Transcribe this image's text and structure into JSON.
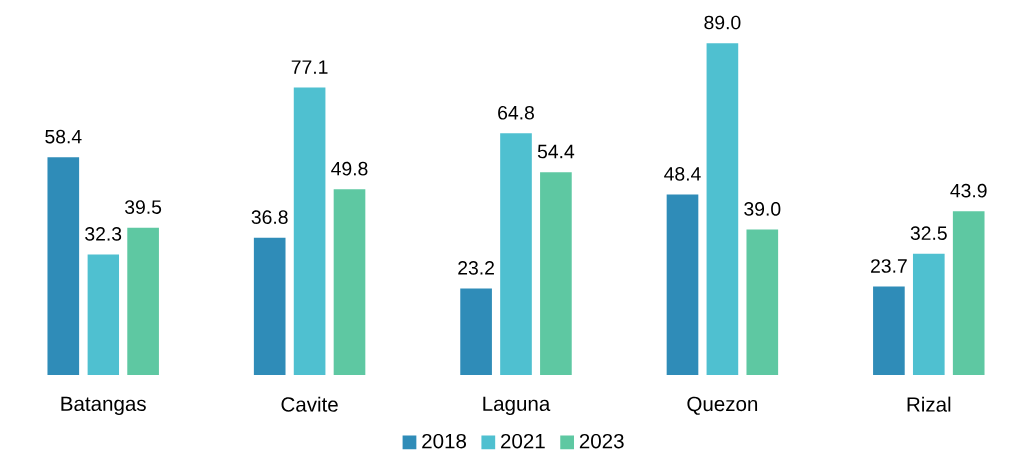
{
  "chart_data": {
    "type": "bar",
    "categories": [
      "Batangas",
      "Cavite",
      "Laguna",
      "Quezon",
      "Rizal"
    ],
    "series": [
      {
        "name": "2018",
        "color": "#2f8cb8",
        "values": [
          58.4,
          36.8,
          23.2,
          48.4,
          23.7
        ],
        "value_labels": [
          "58.4",
          "36.8",
          "23.2",
          "48.4",
          "23.7"
        ]
      },
      {
        "name": "2021",
        "color": "#4fc0d0",
        "values": [
          32.3,
          77.1,
          64.8,
          89.0,
          32.5
        ],
        "value_labels": [
          "32.3",
          "77.1",
          "64.8",
          "89.0",
          "32.5"
        ]
      },
      {
        "name": "2023",
        "color": "#5ec8a2",
        "values": [
          39.5,
          49.8,
          54.4,
          39.0,
          43.9
        ],
        "value_labels": [
          "39.5",
          "49.8",
          "54.4",
          "39.0",
          "43.9"
        ]
      }
    ],
    "legend": "bottom"
  }
}
